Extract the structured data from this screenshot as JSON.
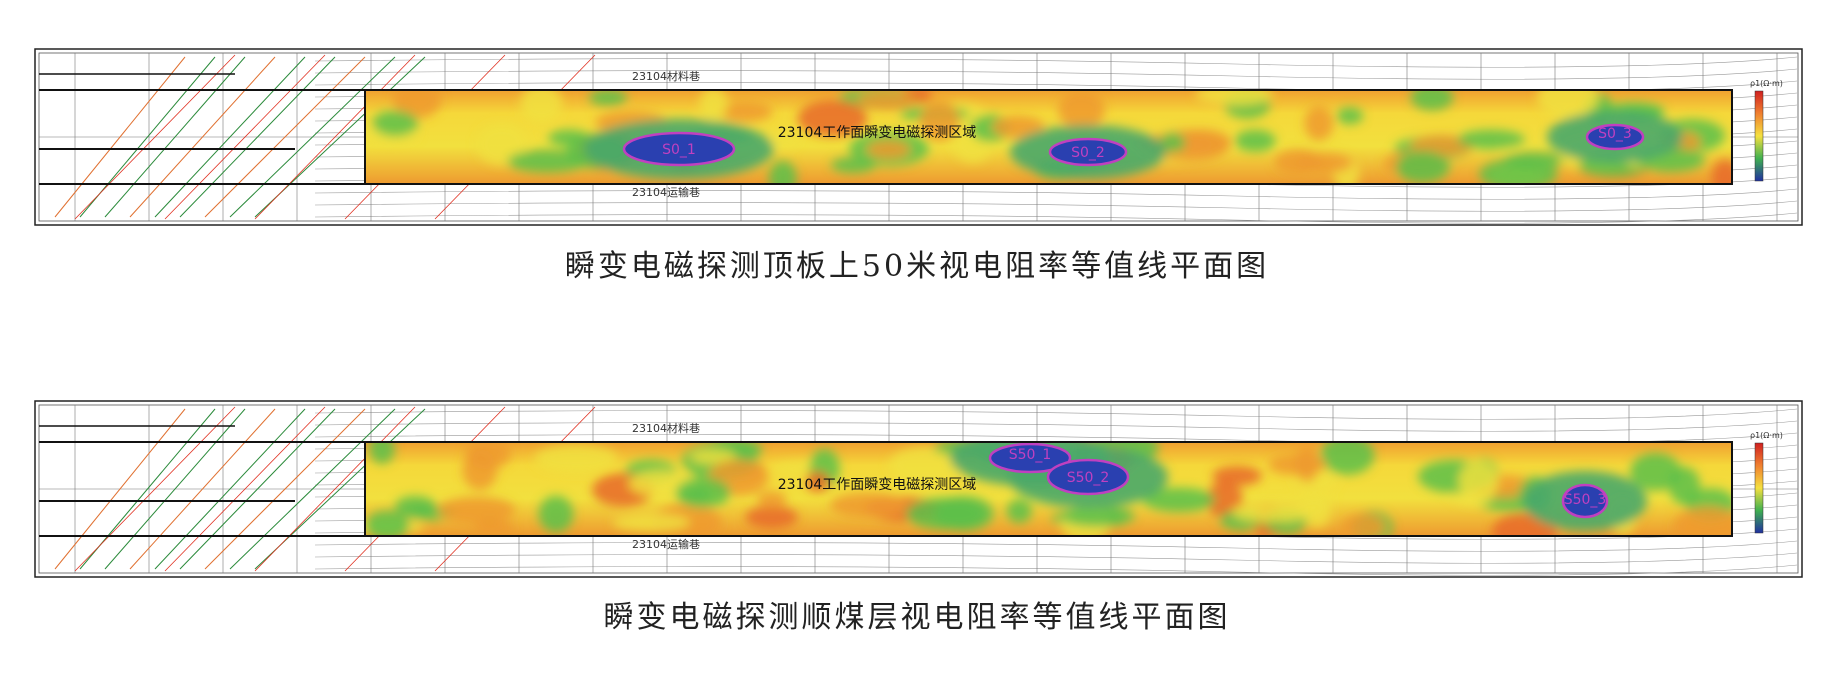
{
  "figures": [
    {
      "caption": "瞬变电磁探测顶板上50米视电阻率等值线平面图",
      "map": {
        "tunnel_top": "23104材料巷",
        "tunnel_bottom": "23104运输巷",
        "zone": "23104工作面瞬变电磁探测区域",
        "legend_unit": "ρ1(Ω·m)",
        "anomalies": [
          "S0_1",
          "S0_2",
          "S0_3"
        ]
      }
    },
    {
      "caption": "瞬变电磁探测顺煤层视电阻率等值线平面图",
      "map": {
        "tunnel_top": "23104材料巷",
        "tunnel_bottom": "23104运输巷",
        "zone": "23104工作面瞬变电磁探测区域",
        "legend_unit": "ρ1(Ω·m)",
        "anomalies": [
          "S50_1",
          "S50_2",
          "S50_3"
        ]
      }
    }
  ]
}
